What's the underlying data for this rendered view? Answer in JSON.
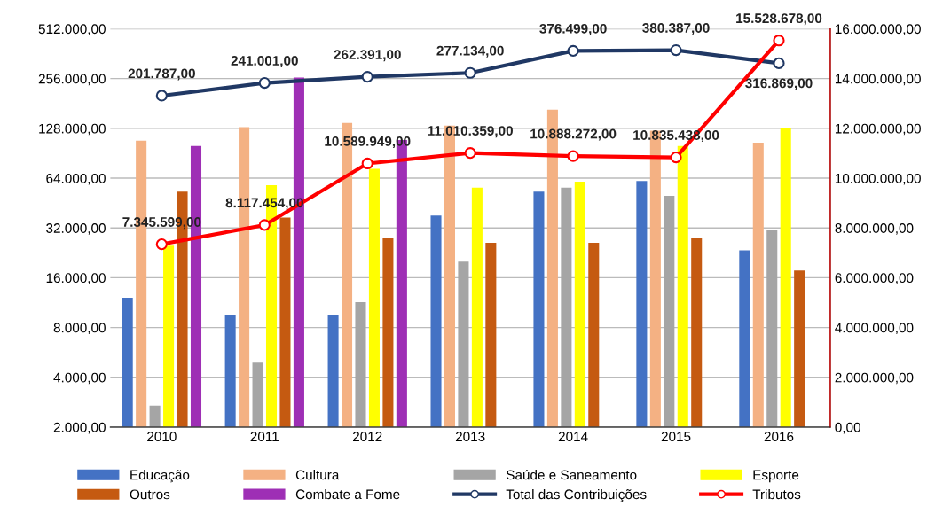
{
  "chart_data": {
    "type": "bar",
    "categories": [
      "2010",
      "2011",
      "2012",
      "2013",
      "2014",
      "2015",
      "2016"
    ],
    "log": "y",
    "grid": "y",
    "legend": "bottom",
    "marker": "circle",
    "ylim": [
      2000,
      512000
    ],
    "yticks": [
      {
        "value": 2000,
        "label": "2.000,00"
      },
      {
        "value": 4000,
        "label": "4.000,00"
      },
      {
        "value": 8000,
        "label": "8.000,00"
      },
      {
        "value": 16000,
        "label": "16.000,00"
      },
      {
        "value": 32000,
        "label": "32.000,00"
      },
      {
        "value": 64000,
        "label": "64.000,00"
      },
      {
        "value": 128000,
        "label": "128.000,00"
      },
      {
        "value": 256000,
        "label": "256.000,00"
      },
      {
        "value": 512000,
        "label": "512.000,00"
      }
    ],
    "y2lim": [
      0,
      16000000
    ],
    "y2ticks": [
      {
        "value": 0,
        "label": "0,00"
      },
      {
        "value": 2000000,
        "label": "2.000.000,00"
      },
      {
        "value": 4000000,
        "label": "4.000.000,00"
      },
      {
        "value": 6000000,
        "label": "6.000.000,00"
      },
      {
        "value": 8000000,
        "label": "8.000.000,00"
      },
      {
        "value": 10000000,
        "label": "10.000.000,00"
      },
      {
        "value": 12000000,
        "label": "12.000.000,00"
      },
      {
        "value": 14000000,
        "label": "14.000.000,00"
      },
      {
        "value": 16000000,
        "label": "16.000.000,00"
      }
    ],
    "series": [
      {
        "name": "Educação",
        "color": "#4472c4",
        "values": [
          12100,
          9500,
          9500,
          38000,
          53000,
          61500,
          23400
        ]
      },
      {
        "name": "Cultura",
        "color": "#f4b183",
        "values": [
          108000,
          130000,
          138000,
          133000,
          166000,
          124000,
          105000
        ]
      },
      {
        "name": "Saúde e Saneamento",
        "color": "#a5a5a5",
        "values": [
          2700,
          4900,
          11400,
          20000,
          56000,
          50000,
          31000
        ]
      },
      {
        "name": "Esporte",
        "color": "#ffff00",
        "values": [
          25000,
          58000,
          73000,
          56000,
          61000,
          100000,
          128000
        ]
      },
      {
        "name": "Outros",
        "color": "#c55a11",
        "values": [
          53000,
          37000,
          28000,
          26000,
          26000,
          28000,
          17700
        ]
      },
      {
        "name": "Combate a Fome",
        "color": "#9e2fb5",
        "values": [
          100000,
          260000,
          109000,
          null,
          null,
          null,
          null
        ]
      },
      {
        "name": "Total das Contribuições",
        "type": "line",
        "color": "#203864",
        "values": [
          201787,
          241001,
          262391,
          277134,
          376499,
          380387,
          316869
        ],
        "value_labels": [
          "201.787,00",
          "241.001,00",
          "262.391,00",
          "277.134,00",
          "376.499,00",
          "380.387,00",
          "316.869,00"
        ]
      },
      {
        "name": "Tributos",
        "type": "line",
        "axis": "y2",
        "color": "#ff0000",
        "values": [
          7345599,
          8117454,
          10589949,
          11010359,
          10888272,
          10835438,
          15528678
        ],
        "value_labels": [
          "7.345.599,00",
          "8.117.454,00",
          "10.589.949,00",
          "11.010.359,00",
          "10.888.272,00",
          "10.835.438,00",
          "15.528.678,00"
        ]
      }
    ]
  }
}
